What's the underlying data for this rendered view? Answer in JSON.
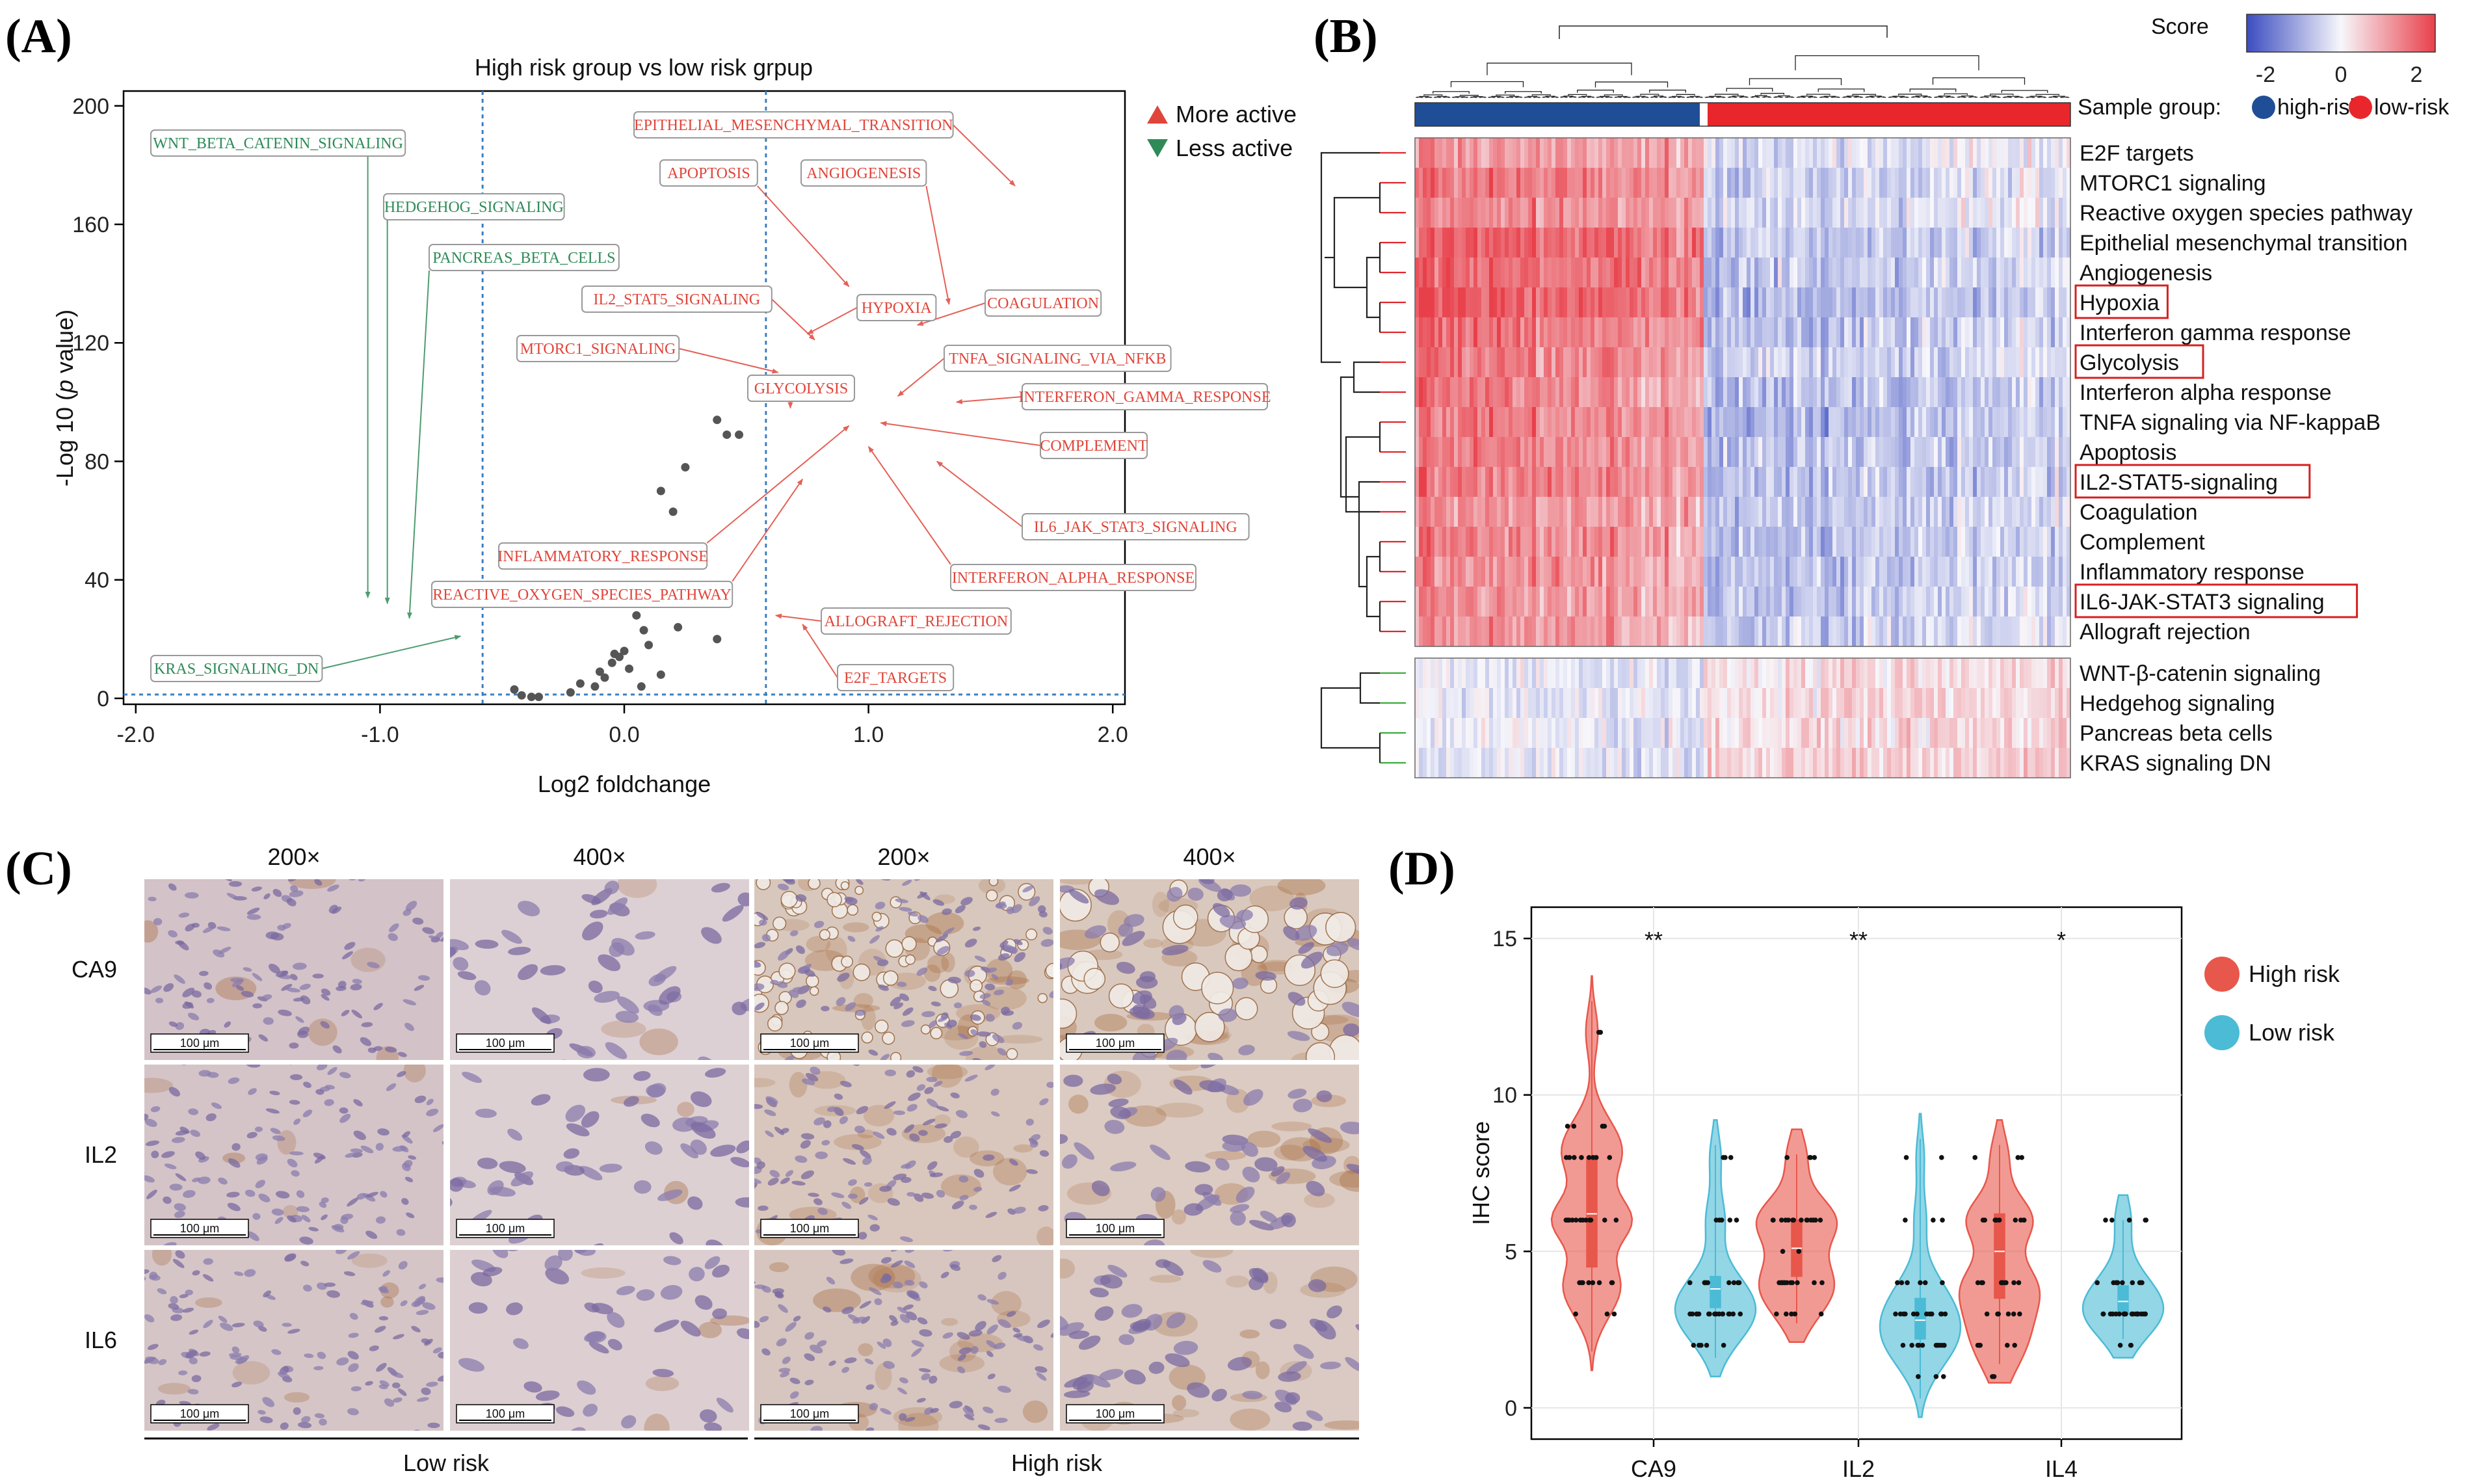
{
  "panels": {
    "a": "(A)",
    "b": "(B)",
    "c": "(C)",
    "d": "(D)"
  },
  "colors": {
    "up": "#e0453a",
    "down": "#2e8b57",
    "high": "#1f4e96",
    "low": "#e8262b",
    "violin_high": "#e8574b",
    "violin_low": "#4bbbd6",
    "heat_low": "#3b4cc0",
    "heat_high": "#e8404a"
  },
  "chart_data": [
    {
      "type": "scatter",
      "title": "High risk group vs low risk grpup",
      "xlabel": "Log2 foldchange",
      "ylabel_pre": "-Log 10 (",
      "ylabel_italic": "p",
      "ylabel_post": " value)",
      "xlim": [
        -2.05,
        2.05
      ],
      "ylim": [
        -2,
        205
      ],
      "xticks": [
        "-2.0",
        "-1.0",
        "0.0",
        "1.0",
        "2.0"
      ],
      "xtick_values": [
        -2,
        -1,
        0,
        1,
        2
      ],
      "yticks": [
        "0",
        "40",
        "80",
        "120",
        "160",
        "200"
      ],
      "ytick_values": [
        0,
        40,
        80,
        120,
        160,
        200
      ],
      "vlines": [
        -0.58,
        0.58
      ],
      "hline": 1.3,
      "legend": [
        {
          "label": "More active",
          "marker": "up"
        },
        {
          "label": "Less active",
          "marker": "down"
        }
      ],
      "points": [
        [
          -0.45,
          3
        ],
        [
          -0.42,
          1
        ],
        [
          -0.38,
          0.5
        ],
        [
          -0.35,
          0.5
        ],
        [
          -0.22,
          2
        ],
        [
          -0.18,
          5
        ],
        [
          -0.12,
          4
        ],
        [
          -0.1,
          9
        ],
        [
          -0.08,
          7
        ],
        [
          -0.05,
          12
        ],
        [
          -0.04,
          15
        ],
        [
          -0.02,
          14
        ],
        [
          0.0,
          16
        ],
        [
          0.02,
          10
        ],
        [
          0.05,
          28
        ],
        [
          0.07,
          4
        ],
        [
          0.08,
          23
        ],
        [
          0.1,
          18
        ],
        [
          0.15,
          8
        ],
        [
          0.22,
          24
        ],
        [
          0.38,
          20
        ],
        [
          0.15,
          70
        ],
        [
          0.2,
          63
        ],
        [
          0.25,
          78
        ],
        [
          0.38,
          94
        ],
        [
          0.42,
          89
        ],
        [
          0.47,
          89
        ]
      ],
      "pathways": [
        {
          "name": "EPITHELIAL_MESENCHYMAL_TRANSITION",
          "dir": "up",
          "x": 1.6,
          "y": 173
        },
        {
          "name": "APOPTOSIS",
          "dir": "up",
          "x": 0.92,
          "y": 139
        },
        {
          "name": "ANGIOGENESIS",
          "dir": "up",
          "x": 1.33,
          "y": 133
        },
        {
          "name": "HYPOXIA",
          "dir": "up",
          "x": 0.75,
          "y": 123
        },
        {
          "name": "COAGULATION",
          "dir": "up",
          "x": 1.2,
          "y": 126
        },
        {
          "name": "IL2_STAT5_SIGNALING",
          "dir": "up",
          "x": 0.78,
          "y": 121
        },
        {
          "name": "MTORC1_SIGNALING",
          "dir": "up",
          "x": 0.63,
          "y": 110
        },
        {
          "name": "TNFA_SIGNALING_VIA_NFKB",
          "dir": "up",
          "x": 1.12,
          "y": 102
        },
        {
          "name": "GLYCOLYSIS",
          "dir": "up",
          "x": 0.68,
          "y": 98
        },
        {
          "name": "INTERFERON_GAMMA_RESPONSE",
          "dir": "up",
          "x": 1.36,
          "y": 100
        },
        {
          "name": "COMPLEMENT",
          "dir": "up",
          "x": 1.05,
          "y": 93
        },
        {
          "name": "IL6_JAK_STAT3_SIGNALING",
          "dir": "up",
          "x": 1.28,
          "y": 80
        },
        {
          "name": "INFLAMMATORY_RESPONSE",
          "dir": "up",
          "x": 0.92,
          "y": 92
        },
        {
          "name": "REACTIVE_OXYGEN_SPECIES_PATHWAY",
          "dir": "up",
          "x": 0.73,
          "y": 74
        },
        {
          "name": "INTERFERON_ALPHA_RESPONSE",
          "dir": "up",
          "x": 1.0,
          "y": 85
        },
        {
          "name": "ALLOGRAFT_REJECTION",
          "dir": "up",
          "x": 0.62,
          "y": 28
        },
        {
          "name": "E2F_TARGETS",
          "dir": "up",
          "x": 0.73,
          "y": 25
        },
        {
          "name": "WNT_BETA_CATENIN_SIGNALING",
          "dir": "down",
          "x": -1.05,
          "y": 34
        },
        {
          "name": "HEDGEHOG_SIGNALING",
          "dir": "down",
          "x": -0.97,
          "y": 32
        },
        {
          "name": "PANCREAS_BETA_CELLS",
          "dir": "down",
          "x": -0.88,
          "y": 27
        },
        {
          "name": "KRAS_SIGNALING_DN",
          "dir": "down",
          "x": -0.67,
          "y": 21
        }
      ]
    },
    {
      "type": "heatmap",
      "legend_title": "Score",
      "legend_ticks": [
        "-2",
        "0",
        "2"
      ],
      "legend_tick_values": [
        -2,
        0,
        2
      ],
      "value_range": [
        -2.5,
        2.5
      ],
      "sample_group_label": "Sample group:",
      "groups": [
        {
          "name": "high-risk",
          "fraction": 0.44
        },
        {
          "name": "low-risk",
          "fraction": 0.56
        }
      ],
      "rows": [
        {
          "name": "E2F targets",
          "boxed": false,
          "cluster": "up",
          "high_mean": 0.9,
          "low_mean": -0.45
        },
        {
          "name": "MTORC1 signaling",
          "boxed": false,
          "cluster": "up",
          "high_mean": 1.3,
          "low_mean": -0.6
        },
        {
          "name": "Reactive oxygen species pathway",
          "boxed": false,
          "cluster": "up",
          "high_mean": 1.1,
          "low_mean": -0.5
        },
        {
          "name": "Epithelial mesenchymal transition",
          "boxed": false,
          "cluster": "up",
          "high_mean": 1.6,
          "low_mean": -0.9
        },
        {
          "name": "Angiogenesis",
          "boxed": false,
          "cluster": "up",
          "high_mean": 1.5,
          "low_mean": -0.8
        },
        {
          "name": "Hypoxia",
          "boxed": true,
          "cluster": "up",
          "high_mean": 1.7,
          "low_mean": -1.0
        },
        {
          "name": "Interferon gamma response",
          "boxed": false,
          "cluster": "up",
          "high_mean": 1.4,
          "low_mean": -0.9
        },
        {
          "name": "Glycolysis",
          "boxed": true,
          "cluster": "up",
          "high_mean": 1.3,
          "low_mean": -0.7
        },
        {
          "name": "Interferon alpha response",
          "boxed": false,
          "cluster": "up",
          "high_mean": 1.2,
          "low_mean": -0.9
        },
        {
          "name": "TNFA signaling via NF-kappaB",
          "boxed": false,
          "cluster": "up",
          "high_mean": 1.2,
          "low_mean": -1.0
        },
        {
          "name": "Apoptosis",
          "boxed": false,
          "cluster": "up",
          "high_mean": 1.1,
          "low_mean": -0.9
        },
        {
          "name": "IL2-STAT5-signaling",
          "boxed": true,
          "cluster": "up",
          "high_mean": 1.2,
          "low_mean": -0.9
        },
        {
          "name": "Coagulation",
          "boxed": false,
          "cluster": "up",
          "high_mean": 1.0,
          "low_mean": -0.8
        },
        {
          "name": "Complement",
          "boxed": false,
          "cluster": "up",
          "high_mean": 1.1,
          "low_mean": -0.9
        },
        {
          "name": "Inflammatory response",
          "boxed": false,
          "cluster": "up",
          "high_mean": 1.0,
          "low_mean": -0.9
        },
        {
          "name": "IL6-JAK-STAT3 signaling",
          "boxed": true,
          "cluster": "up",
          "high_mean": 1.0,
          "low_mean": -0.8
        },
        {
          "name": "Allograft rejection",
          "boxed": false,
          "cluster": "up",
          "high_mean": 0.9,
          "low_mean": -0.7
        },
        {
          "name": "WNT-β-catenin signaling",
          "boxed": false,
          "cluster": "down",
          "high_mean": -0.3,
          "low_mean": 0.3
        },
        {
          "name": "Hedgehog signaling",
          "boxed": false,
          "cluster": "down",
          "high_mean": -0.3,
          "low_mean": 0.35
        },
        {
          "name": "Pancreas beta cells",
          "boxed": false,
          "cluster": "down",
          "high_mean": -0.25,
          "low_mean": 0.3
        },
        {
          "name": "KRAS signaling DN",
          "boxed": false,
          "cluster": "down",
          "high_mean": -0.35,
          "low_mean": 0.4
        }
      ]
    },
    {
      "type": "violin",
      "ylabel": "IHC score",
      "ylim": [
        -1,
        16
      ],
      "yticks": [
        "0",
        "5",
        "10",
        "15"
      ],
      "ytick_values": [
        0,
        5,
        10,
        15
      ],
      "categories": [
        "CA9",
        "IL2",
        "IL4"
      ],
      "significance": [
        "**",
        "**",
        "*"
      ],
      "legend": [
        "High risk",
        "Low risk"
      ],
      "groups": [
        {
          "category": "CA9",
          "group": "High risk",
          "min": 1.2,
          "max": 13.8,
          "q1": 4.5,
          "median": 6.2,
          "q3": 8.0,
          "values": [
            3,
            3,
            3,
            4,
            4,
            4,
            4,
            4,
            4,
            4,
            4,
            6,
            6,
            6,
            6,
            6,
            6,
            6,
            6,
            6,
            6,
            6,
            6,
            8,
            8,
            8,
            8,
            8,
            8,
            8,
            8,
            9,
            9,
            9,
            9,
            6,
            12,
            12
          ]
        },
        {
          "category": "CA9",
          "group": "Low risk",
          "min": 1.0,
          "max": 9.2,
          "q1": 3.2,
          "median": 3.8,
          "q3": 4.2,
          "values": [
            2,
            2,
            2,
            2,
            2,
            3,
            3,
            3,
            3,
            3,
            3,
            3,
            3,
            3,
            3,
            3,
            3,
            3,
            3,
            4,
            4,
            4,
            4,
            4,
            4,
            4,
            6,
            6,
            6,
            6,
            6,
            8,
            8,
            8,
            3,
            3,
            4,
            4
          ]
        },
        {
          "category": "IL2",
          "group": "High risk",
          "min": 2.1,
          "max": 8.9,
          "q1": 4.2,
          "median": 5.1,
          "q3": 6.0,
          "values": [
            3,
            3,
            3,
            4,
            4,
            4,
            4,
            4,
            4,
            4,
            4,
            4,
            6,
            6,
            6,
            6,
            6,
            6,
            6,
            6,
            6,
            6,
            6,
            6,
            5,
            5,
            4,
            4,
            8,
            8,
            8,
            8,
            6,
            6,
            6,
            3,
            3,
            4
          ]
        },
        {
          "category": "IL2",
          "group": "Low risk",
          "min": -0.3,
          "max": 9.4,
          "q1": 2.2,
          "median": 2.8,
          "q3": 3.5,
          "values": [
            1,
            1,
            1,
            2,
            2,
            2,
            2,
            2,
            2,
            2,
            2,
            2,
            2,
            2,
            2,
            3,
            3,
            3,
            3,
            3,
            3,
            3,
            3,
            3,
            3,
            3,
            4,
            4,
            4,
            4,
            4,
            4,
            6,
            6,
            6,
            8,
            8,
            3
          ]
        },
        {
          "category": "IL4",
          "group": "High risk",
          "min": 0.8,
          "max": 9.2,
          "q1": 3.5,
          "median": 5.0,
          "q3": 6.2,
          "values": [
            1,
            1,
            2,
            2,
            2,
            2,
            2,
            2,
            3,
            3,
            3,
            3,
            3,
            3,
            4,
            4,
            4,
            4,
            4,
            4,
            4,
            4,
            6,
            6,
            6,
            6,
            6,
            6,
            6,
            6,
            6,
            8,
            8,
            8,
            4,
            4,
            6,
            6
          ]
        },
        {
          "category": "IL4",
          "group": "Low risk",
          "min": 1.6,
          "max": 6.8,
          "q1": 3.0,
          "median": 3.4,
          "q3": 3.9,
          "values": [
            2,
            2,
            2,
            3,
            3,
            3,
            3,
            3,
            3,
            3,
            3,
            3,
            3,
            3,
            3,
            3,
            3,
            3,
            3,
            3,
            4,
            4,
            4,
            4,
            4,
            4,
            4,
            4,
            4,
            4,
            6,
            6,
            6,
            6,
            6,
            3,
            3,
            3
          ]
        }
      ]
    }
  ],
  "ihc": {
    "mag_labels": [
      "200×",
      "400×",
      "200×",
      "400×"
    ],
    "row_labels": [
      "CA9",
      "IL2",
      "IL6"
    ],
    "scale_bar": "100 μm",
    "group_labels": [
      "Low risk",
      "High risk"
    ],
    "tiles": [
      [
        {
          "bg": "#d3c2c7",
          "stain": 0.1,
          "zoom": 1
        },
        {
          "bg": "#ddd0d4",
          "stain": 0.05,
          "zoom": 2
        },
        {
          "bg": "#d8c7bc",
          "stain": 0.55,
          "zoom": 1,
          "vacuoles": true
        },
        {
          "bg": "#d9c8bd",
          "stain": 0.65,
          "zoom": 2,
          "vacuoles": true
        }
      ],
      [
        {
          "bg": "#d4c4c8",
          "stain": 0.1,
          "zoom": 1
        },
        {
          "bg": "#ddd0d3",
          "stain": 0.05,
          "zoom": 2
        },
        {
          "bg": "#d9c7bd",
          "stain": 0.35,
          "zoom": 1
        },
        {
          "bg": "#dccbc2",
          "stain": 0.4,
          "zoom": 2
        }
      ],
      [
        {
          "bg": "#d5c5c6",
          "stain": 0.15,
          "zoom": 1
        },
        {
          "bg": "#ddcfd1",
          "stain": 0.08,
          "zoom": 2
        },
        {
          "bg": "#d7c6bf",
          "stain": 0.3,
          "zoom": 1
        },
        {
          "bg": "#dacac3",
          "stain": 0.35,
          "zoom": 2
        }
      ]
    ]
  }
}
